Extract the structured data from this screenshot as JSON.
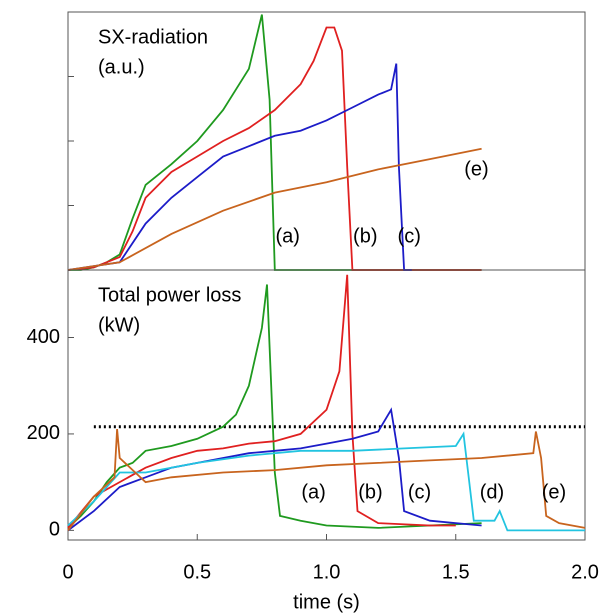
{
  "chart_data": [
    {
      "type": "line",
      "title_lines": [
        "SX-radiation",
        "(a.u.)"
      ],
      "xlim": [
        0,
        2
      ],
      "ylim": [
        0,
        100
      ],
      "yticks": [
        0,
        25,
        50,
        75,
        100
      ],
      "show_ytick_labels": false,
      "series": [
        {
          "name": "(a)",
          "color": "#1f9a1f",
          "x": [
            0,
            0.05,
            0.1,
            0.15,
            0.2,
            0.25,
            0.3,
            0.4,
            0.5,
            0.6,
            0.7,
            0.75,
            0.78,
            0.8,
            1.0,
            1.33,
            1.6
          ],
          "values": [
            0,
            0,
            1,
            3,
            6,
            20,
            33,
            41,
            50,
            62,
            78,
            99,
            66,
            0,
            0,
            0,
            0
          ]
        },
        {
          "name": "(b)",
          "color": "#e02020",
          "x": [
            0,
            0.1,
            0.2,
            0.25,
            0.3,
            0.4,
            0.5,
            0.6,
            0.7,
            0.8,
            0.9,
            0.95,
            1.0,
            1.03,
            1.06,
            1.08,
            1.1,
            1.6
          ],
          "values": [
            0,
            1,
            5,
            15,
            28,
            38,
            44,
            50,
            55,
            62,
            72,
            81,
            94,
            94,
            85,
            40,
            0,
            0
          ]
        },
        {
          "name": "(c)",
          "color": "#1c1cc8",
          "x": [
            0,
            0.2,
            0.3,
            0.4,
            0.5,
            0.6,
            0.7,
            0.8,
            0.9,
            1.0,
            1.1,
            1.2,
            1.25,
            1.27,
            1.28,
            1.3,
            1.33
          ],
          "values": [
            0,
            3,
            18,
            28,
            36,
            44,
            48,
            52,
            54,
            58,
            63,
            68,
            70,
            80,
            40,
            0,
            0
          ]
        },
        {
          "name": "(e)",
          "color": "#c8641e",
          "x": [
            0,
            0.2,
            0.4,
            0.6,
            0.8,
            1.0,
            1.2,
            1.4,
            1.6
          ],
          "values": [
            0,
            3,
            14,
            23,
            30,
            34,
            39,
            43,
            47
          ]
        }
      ]
    },
    {
      "type": "line",
      "title_lines": [
        "Total power loss",
        "(kW)"
      ],
      "xlim": [
        0,
        2
      ],
      "ylim": [
        -20,
        540
      ],
      "yticks": [
        0,
        200,
        400
      ],
      "show_ytick_labels": true,
      "xticks": [
        0,
        0.5,
        {
          "value": 1,
          "label": "1.0"
        },
        1.5,
        {
          "value": 2,
          "label": "2.0"
        }
      ],
      "xlabel": "time (s)",
      "hline": 215,
      "hline_color": "#000000",
      "series": [
        {
          "name": "(a)",
          "color": "#1f9a1f",
          "x": [
            0,
            0.05,
            0.1,
            0.15,
            0.2,
            0.25,
            0.3,
            0.4,
            0.5,
            0.6,
            0.65,
            0.7,
            0.75,
            0.77,
            0.8,
            0.82,
            0.9,
            1.0,
            1.2,
            1.4,
            1.6
          ],
          "values": [
            5,
            30,
            60,
            100,
            130,
            140,
            165,
            175,
            190,
            215,
            240,
            300,
            420,
            510,
            120,
            30,
            20,
            10,
            5,
            10,
            15
          ]
        },
        {
          "name": "(b)",
          "color": "#e02020",
          "x": [
            0,
            0.1,
            0.2,
            0.3,
            0.4,
            0.5,
            0.6,
            0.7,
            0.8,
            0.9,
            1.0,
            1.05,
            1.08,
            1.1,
            1.12,
            1.2,
            1.4,
            1.5
          ],
          "values": [
            5,
            70,
            100,
            130,
            150,
            165,
            170,
            180,
            185,
            200,
            250,
            330,
            530,
            200,
            40,
            15,
            10,
            10
          ]
        },
        {
          "name": "(c)",
          "color": "#1c1cc8",
          "x": [
            0,
            0.1,
            0.2,
            0.3,
            0.4,
            0.5,
            0.6,
            0.7,
            0.8,
            0.9,
            1.0,
            1.1,
            1.2,
            1.25,
            1.28,
            1.3,
            1.4,
            1.5,
            1.6
          ],
          "values": [
            0,
            40,
            90,
            110,
            130,
            140,
            150,
            160,
            165,
            170,
            180,
            190,
            205,
            250,
            150,
            40,
            20,
            15,
            10
          ]
        },
        {
          "name": "(d)",
          "color": "#22c4e0",
          "x": [
            0,
            0.1,
            0.2,
            0.3,
            0.5,
            0.7,
            0.9,
            1.1,
            1.3,
            1.5,
            1.53,
            1.55,
            1.57,
            1.65,
            1.67,
            1.7,
            2.0
          ],
          "values": [
            10,
            60,
            120,
            120,
            140,
            155,
            165,
            165,
            170,
            175,
            200,
            110,
            20,
            20,
            40,
            0,
            0
          ]
        },
        {
          "name": "(e)",
          "color": "#c8641e",
          "x": [
            0,
            0.1,
            0.18,
            0.19,
            0.2,
            0.3,
            0.4,
            0.6,
            0.8,
            1.0,
            1.2,
            1.4,
            1.6,
            1.8,
            1.81,
            1.83,
            1.85,
            1.9,
            2.0
          ],
          "values": [
            0,
            70,
            110,
            210,
            150,
            100,
            110,
            120,
            125,
            135,
            140,
            145,
            150,
            160,
            205,
            150,
            30,
            15,
            5
          ]
        }
      ]
    }
  ]
}
